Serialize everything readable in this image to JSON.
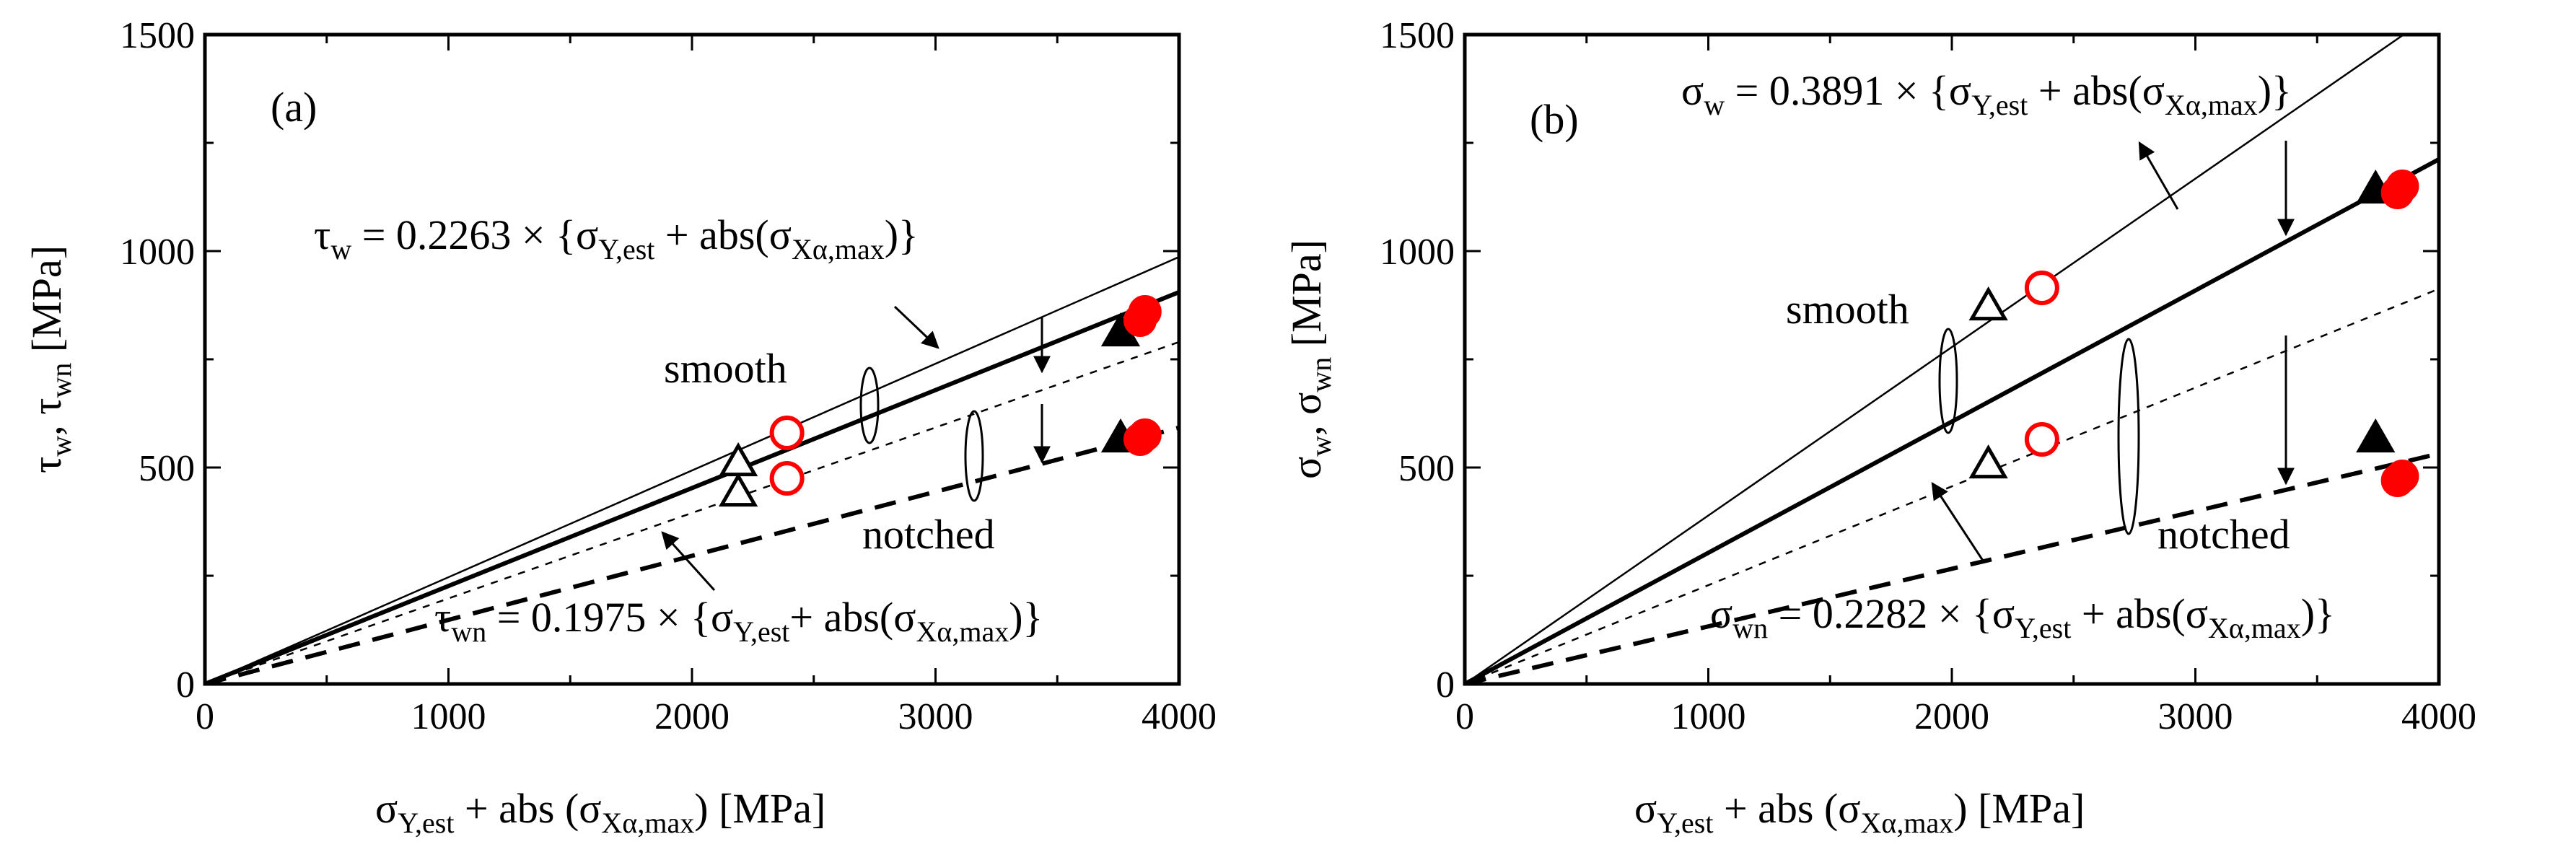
{
  "chart_data": [
    {
      "type": "scatter",
      "panel_label": "(a)",
      "xlim": [
        0,
        4000
      ],
      "ylim": [
        0,
        1500
      ],
      "x_ticks": [
        "0",
        "1000",
        "2000",
        "3000",
        "4000"
      ],
      "y_ticks": [
        "0",
        "500",
        "1000",
        "1500"
      ],
      "xlabel": "σY,est + abs (σXα,max) [MPa]",
      "ylabel": "τw, τwn [MPa]",
      "group_labels": {
        "smooth": "smooth",
        "notched": "notched"
      },
      "series": [
        {
          "name": "smooth-open-triangle",
          "marker": "triangle-open",
          "color": "#000000",
          "x": [
            2190
          ],
          "y": [
            510
          ]
        },
        {
          "name": "smooth-open-circle",
          "marker": "circle-open",
          "color": "#ff0000",
          "x": [
            2390
          ],
          "y": [
            580
          ]
        },
        {
          "name": "smooth-filled-triangle",
          "marker": "triangle-filled",
          "color": "#000000",
          "x": [
            3760
          ],
          "y": [
            810
          ]
        },
        {
          "name": "smooth-filled-circle",
          "marker": "circle-filled",
          "color": "#ff0000",
          "x": [
            3840,
            3860
          ],
          "y": [
            840,
            860
          ]
        },
        {
          "name": "notched-open-triangle",
          "marker": "triangle-open",
          "color": "#000000",
          "x": [
            2190
          ],
          "y": [
            440
          ]
        },
        {
          "name": "notched-open-circle",
          "marker": "circle-open",
          "color": "#ff0000",
          "x": [
            2390
          ],
          "y": [
            475
          ]
        },
        {
          "name": "notched-filled-triangle",
          "marker": "triangle-filled",
          "color": "#000000",
          "x": [
            3760
          ],
          "y": [
            565
          ]
        },
        {
          "name": "notched-filled-circle",
          "marker": "circle-filled",
          "color": "#ff0000",
          "x": [
            3840,
            3860
          ],
          "y": [
            565,
            575
          ]
        }
      ],
      "fit_lines": [
        {
          "name": "smooth-thin",
          "slope": 0.2466,
          "style": "thin"
        },
        {
          "name": "smooth-bold",
          "slope": 0.2263,
          "style": "bold"
        },
        {
          "name": "notched-thin-dashed",
          "slope": 0.1975,
          "style": "thin-dashed"
        },
        {
          "name": "notched-bold-dashed",
          "slope": 0.148,
          "style": "bold-dashed"
        }
      ],
      "equations": [
        {
          "lhs": "τ",
          "lhs_sub": "w",
          "coef": " = 0.2263 × {σ",
          "sub1": "Y,est",
          "mid": " + abs(σ",
          "sub2": "Xα,max",
          "end": ")}"
        },
        {
          "lhs": "τ",
          "lhs_sub": "wn",
          "coef": " = 0.1975 × {σ",
          "sub1": "Y,est",
          "mid": "+ abs(σ",
          "sub2": "Xα,max",
          "end": ")}"
        }
      ]
    },
    {
      "type": "scatter",
      "panel_label": "(b)",
      "xlim": [
        0,
        4000
      ],
      "ylim": [
        0,
        1500
      ],
      "x_ticks": [
        "0",
        "1000",
        "2000",
        "3000",
        "4000"
      ],
      "y_ticks": [
        "0",
        "500",
        "1000",
        "1500"
      ],
      "xlabel": "σY,est + abs (σXα,max) [MPa]",
      "ylabel": "σw, σwn [MPa]",
      "group_labels": {
        "smooth": "smooth",
        "notched": "notched"
      },
      "series": [
        {
          "name": "smooth-open-triangle",
          "marker": "triangle-open",
          "color": "#000000",
          "x": [
            2150
          ],
          "y": [
            870
          ]
        },
        {
          "name": "smooth-open-circle",
          "marker": "circle-open",
          "color": "#ff0000",
          "x": [
            2370
          ],
          "y": [
            915
          ]
        },
        {
          "name": "smooth-filled-triangle",
          "marker": "triangle-filled",
          "color": "#000000",
          "x": [
            3740
          ],
          "y": [
            1140
          ]
        },
        {
          "name": "smooth-filled-circle",
          "marker": "circle-filled",
          "color": "#ff0000",
          "x": [
            3830,
            3850
          ],
          "y": [
            1135,
            1150
          ]
        },
        {
          "name": "notched-open-triangle",
          "marker": "triangle-open",
          "color": "#000000",
          "x": [
            2150
          ],
          "y": [
            505
          ]
        },
        {
          "name": "notched-open-circle",
          "marker": "circle-open",
          "color": "#ff0000",
          "x": [
            2370
          ],
          "y": [
            565
          ]
        },
        {
          "name": "notched-filled-triangle",
          "marker": "triangle-filled",
          "color": "#000000",
          "x": [
            3740
          ],
          "y": [
            565
          ]
        },
        {
          "name": "notched-filled-circle",
          "marker": "circle-filled",
          "color": "#ff0000",
          "x": [
            3830,
            3850
          ],
          "y": [
            470,
            480
          ]
        }
      ],
      "fit_lines": [
        {
          "name": "smooth-thin",
          "slope": 0.3891,
          "style": "thin"
        },
        {
          "name": "smooth-bold",
          "slope": 0.303,
          "style": "bold"
        },
        {
          "name": "notched-thin-dashed",
          "slope": 0.2282,
          "style": "thin-dashed"
        },
        {
          "name": "notched-bold-dashed",
          "slope": 0.133,
          "style": "bold-dashed"
        }
      ],
      "equations": [
        {
          "lhs": "σ",
          "lhs_sub": "w",
          "coef": " = 0.3891 × {σ",
          "sub1": "Y,est",
          "mid": " + abs(σ",
          "sub2": "Xα,max",
          "end": ")}"
        },
        {
          "lhs": "σ",
          "lhs_sub": "wn",
          "coef": " = 0.2282 × {σ",
          "sub1": "Y,est",
          "mid": " + abs(σ",
          "sub2": "Xα,max",
          "end": ")}"
        }
      ]
    }
  ]
}
